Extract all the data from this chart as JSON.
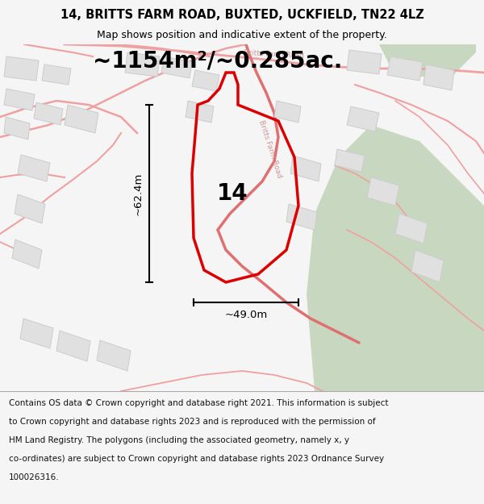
{
  "title_line1": "14, BRITTS FARM ROAD, BUXTED, UCKFIELD, TN22 4LZ",
  "title_line2": "Map shows position and indicative extent of the property.",
  "area_text": "~1154m²/~0.285ac.",
  "label_number": "14",
  "dim_height": "~62.4m",
  "dim_width": "~49.0m",
  "footer_lines": [
    "Contains OS data © Crown copyright and database right 2021. This information is subject",
    "to Crown copyright and database rights 2023 and is reproduced with the permission of",
    "HM Land Registry. The polygons (including the associated geometry, namely x, y",
    "co-ordinates) are subject to Crown copyright and database rights 2023 Ordnance Survey",
    "100026316."
  ],
  "bg_color": "#f5f5f5",
  "map_bg": "#ffffff",
  "road_color": "#f0a0a0",
  "road_color_dark": "#e07070",
  "polygon_color": "#dd0000",
  "building_fill": "#e0e0e0",
  "building_edge": "#cccccc",
  "green_color": "#c8d8c0",
  "title_fontsize": 10.5,
  "subtitle_fontsize": 9,
  "area_fontsize": 20,
  "label_fontsize": 20,
  "dim_fontsize": 9.5,
  "footer_fontsize": 7.5,
  "road_label_color": "#cc9999",
  "road_label_size": 6.5
}
